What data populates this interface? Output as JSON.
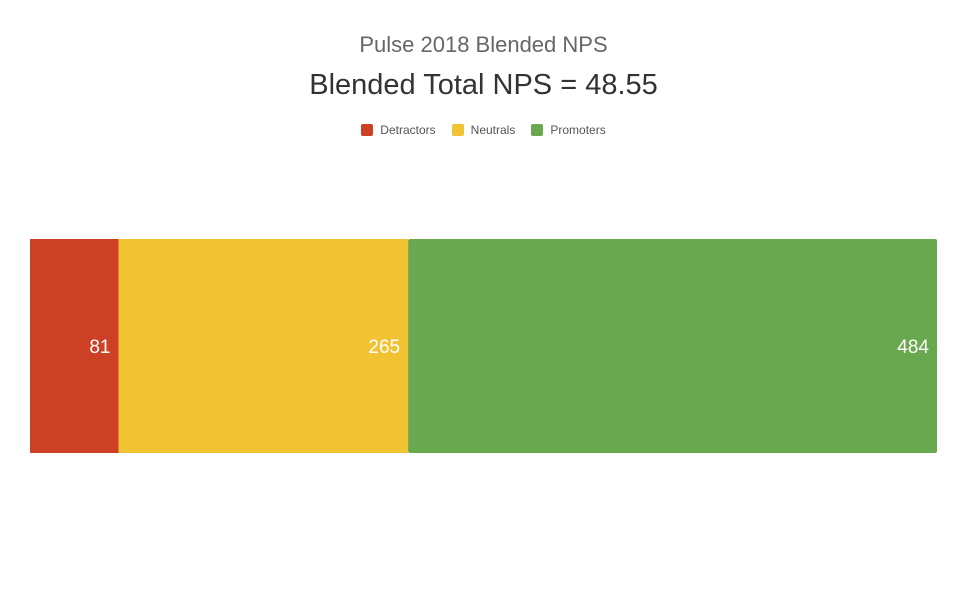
{
  "chart_data": {
    "type": "bar",
    "orientation": "horizontal",
    "stacked": true,
    "subtitle": "Pulse 2018 Blended NPS",
    "title": "Blended Total NPS = 48.55",
    "legend_position": "top-center",
    "grid": false,
    "categories": [
      ""
    ],
    "series": [
      {
        "name": "Detractors",
        "values": [
          81
        ],
        "color": "#cc4125",
        "label": "81"
      },
      {
        "name": "Neutrals",
        "values": [
          265
        ],
        "color": "#f1c232",
        "label": "265"
      },
      {
        "name": "Promoters",
        "values": [
          484
        ],
        "color": "#6aa84f",
        "label": "484"
      }
    ],
    "label_color": "#ffffff"
  }
}
